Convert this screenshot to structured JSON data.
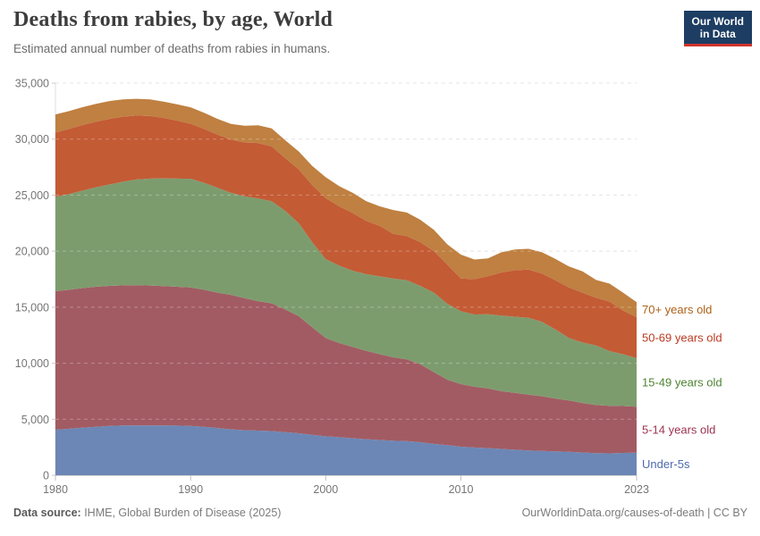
{
  "header": {
    "title": "Deaths from rabies, by age, World",
    "subtitle": "Estimated annual number of deaths from rabies in humans."
  },
  "logo": {
    "line1": "Our World",
    "line2": "in Data",
    "bg_color": "#1d3d63",
    "accent_color": "#d0342c"
  },
  "chart_data": {
    "type": "area",
    "stacked": true,
    "title": "Deaths from rabies, by age, World",
    "subtitle": "Estimated annual number of deaths from rabies in humans.",
    "xlabel": "",
    "ylabel": "",
    "ylim": [
      0,
      35000
    ],
    "yticks": [
      0,
      5000,
      10000,
      15000,
      20000,
      25000,
      30000,
      35000
    ],
    "xticks": [
      1980,
      1990,
      2000,
      2010,
      2023
    ],
    "grid": "horizontal-dashed",
    "legend_position": "right-inline",
    "x": [
      1980,
      1981,
      1982,
      1983,
      1984,
      1985,
      1986,
      1987,
      1988,
      1989,
      1990,
      1991,
      1992,
      1993,
      1994,
      1995,
      1996,
      1997,
      1998,
      1999,
      2000,
      2001,
      2002,
      2003,
      2004,
      2005,
      2006,
      2007,
      2008,
      2009,
      2010,
      2011,
      2012,
      2013,
      2014,
      2015,
      2016,
      2017,
      2018,
      2019,
      2020,
      2021,
      2022,
      2023
    ],
    "series": [
      {
        "name": "Under-5s",
        "color": "#6c87b5",
        "label_color": "#4d6bae",
        "values": [
          4065,
          4150,
          4250,
          4330,
          4400,
          4440,
          4450,
          4450,
          4440,
          4430,
          4410,
          4330,
          4220,
          4100,
          4030,
          3990,
          3950,
          3850,
          3750,
          3600,
          3480,
          3400,
          3300,
          3220,
          3150,
          3080,
          3050,
          2950,
          2800,
          2690,
          2550,
          2480,
          2420,
          2350,
          2280,
          2210,
          2180,
          2140,
          2100,
          2030,
          1970,
          1950,
          1990,
          2020
        ]
      },
      {
        "name": "5-14 years old",
        "color": "#a25b63",
        "label_color": "#9c3352",
        "values": [
          12355,
          12400,
          12450,
          12490,
          12500,
          12510,
          12510,
          12480,
          12440,
          12390,
          12350,
          12220,
          12080,
          12000,
          11770,
          11550,
          11400,
          10950,
          10450,
          9600,
          8770,
          8400,
          8150,
          7880,
          7650,
          7440,
          7300,
          6950,
          6400,
          5840,
          5580,
          5420,
          5330,
          5150,
          5070,
          4990,
          4870,
          4710,
          4570,
          4420,
          4300,
          4250,
          4190,
          4100
        ]
      },
      {
        "name": "15-49 years old",
        "color": "#7d9c6e",
        "label_color": "#4e8431",
        "values": [
          8440,
          8550,
          8700,
          8880,
          9050,
          9250,
          9440,
          9550,
          9620,
          9660,
          9700,
          9550,
          9350,
          9100,
          9100,
          9170,
          9100,
          8800,
          8300,
          7600,
          7040,
          6900,
          6800,
          6850,
          6950,
          7040,
          7050,
          7000,
          7100,
          6770,
          6510,
          6450,
          6620,
          6750,
          6800,
          6850,
          6650,
          6150,
          5580,
          5400,
          5310,
          4880,
          4620,
          4330
        ]
      },
      {
        "name": "50-69 years old",
        "color": "#c35b35",
        "label_color": "#bd3a21",
        "values": [
          5740,
          5800,
          5850,
          5850,
          5850,
          5800,
          5700,
          5580,
          5400,
          5170,
          4910,
          4800,
          4750,
          4750,
          4800,
          4940,
          4900,
          4700,
          4800,
          5100,
          5440,
          5300,
          5150,
          4750,
          4500,
          3980,
          3950,
          3900,
          3700,
          3500,
          2920,
          3150,
          3400,
          3850,
          4150,
          4310,
          4300,
          4400,
          4510,
          4450,
          4250,
          4420,
          3900,
          3650
        ]
      },
      {
        "name": "70+ years old",
        "color": "#bf8041",
        "label_color": "#ae6018",
        "values": [
          1600,
          1600,
          1600,
          1600,
          1600,
          1550,
          1500,
          1490,
          1450,
          1450,
          1470,
          1450,
          1400,
          1400,
          1500,
          1590,
          1600,
          1600,
          1600,
          1700,
          1870,
          1800,
          1800,
          1750,
          1750,
          2130,
          2100,
          2000,
          1900,
          1800,
          2130,
          1750,
          1580,
          1800,
          1850,
          1850,
          1900,
          1900,
          1870,
          1900,
          1600,
          1600,
          1600,
          1350
        ]
      }
    ]
  },
  "footer": {
    "source_label": "Data source:",
    "source_text": " IHME, Global Burden of Disease (2025)",
    "link_text": "OurWorldinData.org/causes-of-death | CC BY"
  }
}
